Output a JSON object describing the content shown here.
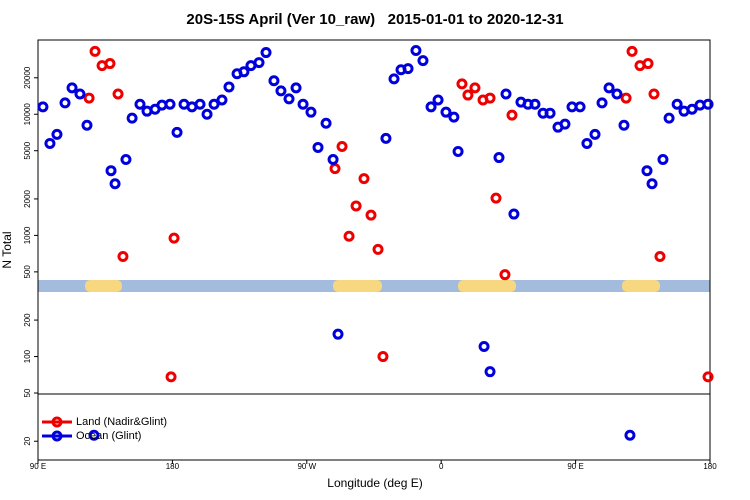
{
  "chart_data": {
    "type": "scatter",
    "title": "20S-15S April (Ver 10_raw)   2015-01-01 to 2020-12-31",
    "xlabel": "Longitude (deg E)",
    "ylabel": "N Total",
    "xlim": [
      90,
      540
    ],
    "xticks": [
      {
        "value": 90,
        "label": "90 E"
      },
      180,
      {
        "value": 270,
        "label": "90 W"
      },
      {
        "value": 360,
        "label": "0"
      },
      {
        "value": 450,
        "label": "90 E"
      },
      {
        "value": 540,
        "label": "180"
      }
    ],
    "ylim": [
      14,
      41000
    ],
    "log_y": true,
    "yticks": [
      20,
      50,
      100,
      200,
      500,
      1000,
      2000,
      5000,
      10000,
      20000
    ],
    "legend": "bottomleft",
    "series": [
      {
        "name": "Land (Nadir&Glint)",
        "color": "#ee0000",
        "x": [
          128.2,
          132.9,
          138.2,
          124.2,
          143.6,
          146.9,
          181.1,
          179.1,
          288.9,
          293.6,
          298.3,
          303,
          308.3,
          313,
          317.7,
          321,
          373.9,
          377.9,
          382.6,
          388,
          392.7,
          396.7,
          402.7,
          407.4,
          487.8,
          493.1,
          498.5,
          483.8,
          502.5,
          506.5,
          538.7
        ],
        "values": [
          33000,
          25200,
          26200,
          13600,
          14700,
          670,
          950,
          68,
          3560,
          5420,
          984,
          1750,
          2940,
          1470,
          766,
          100,
          17800,
          14400,
          16500,
          13100,
          13600,
          2030,
          474,
          9840,
          33000,
          25200,
          26200,
          13600,
          14700,
          670,
          68
        ]
      },
      {
        "name": "Ocean (Glint)",
        "color": "#0000dd",
        "x": [
          93.3,
          98,
          102.7,
          108.1,
          112.8,
          118.1,
          122.8,
          138.9,
          141.6,
          148.9,
          153,
          158.3,
          163,
          168.4,
          173,
          178.4,
          183.1,
          187.8,
          193.1,
          198.5,
          203.2,
          207.9,
          213.2,
          217.9,
          223.3,
          227.9,
          232.6,
          238,
          242.7,
          248,
          252.7,
          258.1,
          262.8,
          267.5,
          272.8,
          277.5,
          282.9,
          287.6,
          290.9,
          323,
          328.4,
          333.1,
          337.8,
          343.1,
          347.8,
          353.2,
          357.9,
          363.2,
          368.5,
          371.3,
          388.7,
          392.7,
          398.7,
          403.4,
          408.7,
          413.4,
          418.1,
          422.8,
          428.2,
          432.9,
          438.2,
          442.9,
          447.6,
          453,
          457.6,
          463,
          467.7,
          472.4,
          477.7,
          482.4,
          486.4,
          497.8,
          501.2,
          508.5,
          512.6,
          518,
          522.6,
          528,
          533.3,
          538.7,
          127.5
        ],
        "values": [
          11500,
          5740,
          6820,
          12400,
          16500,
          14700,
          8110,
          3420,
          2670,
          4230,
          9280,
          12100,
          10600,
          11000,
          11900,
          12100,
          7090,
          12100,
          11500,
          12100,
          10000,
          12100,
          13100,
          16800,
          21600,
          22400,
          25200,
          26700,
          32300,
          18900,
          15600,
          13400,
          16500,
          12100,
          10400,
          5320,
          8430,
          4230,
          153,
          6320,
          19600,
          23300,
          23800,
          33600,
          27700,
          11500,
          13100,
          10400,
          9460,
          4930,
          121,
          75,
          4390,
          14700,
          1500,
          12600,
          12100,
          12100,
          10200,
          10200,
          7820,
          8280,
          11500,
          11500,
          5740,
          6820,
          12400,
          16500,
          14700,
          8110,
          22.4,
          3420,
          2670,
          4230,
          9280,
          12100,
          10600,
          11000,
          11900,
          12100,
          22.4
        ]
      }
    ]
  }
}
